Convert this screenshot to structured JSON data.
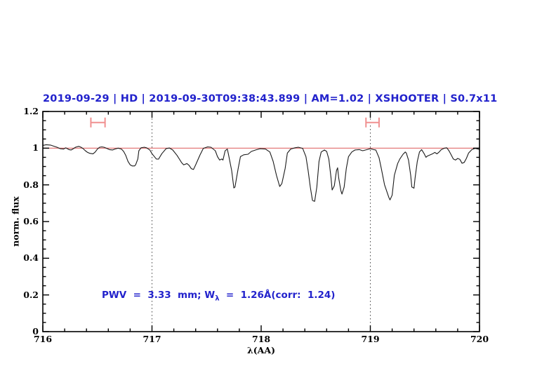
{
  "chart_data": {
    "type": "line",
    "title": "2019-09-29 | HD | 2019-09-30T09:38:43.899 | AM=1.02 | XSHOOTER | S0.7x11",
    "xlabel": "λ(AA)",
    "ylabel": "norm. flux",
    "xlim": [
      716,
      720
    ],
    "ylim": [
      0,
      1.2
    ],
    "x_major_ticks": [
      716,
      717,
      718,
      719,
      720
    ],
    "x_tick_labels": [
      "716",
      "717",
      "718",
      "719",
      "720"
    ],
    "x_minor_step": 0.2,
    "y_major_ticks": [
      0,
      0.2,
      0.4,
      0.6,
      0.8,
      1,
      1.2
    ],
    "y_tick_labels": [
      "0",
      "0.2",
      "0.4",
      "0.6",
      "0.8",
      "1",
      "1.2"
    ],
    "y_minor_step": 0.05,
    "grid": false,
    "legend": false,
    "dotted_vlines": [
      717,
      719
    ],
    "continuum_line_y": 1.0,
    "error_markers": [
      {
        "x1": 716.44,
        "x2": 716.57,
        "y": 1.14
      },
      {
        "x1": 718.96,
        "x2": 719.08,
        "y": 1.14
      }
    ],
    "annotation": {
      "prefix": "PWV  =  3.33  mm; W",
      "sub": "λ",
      "suffix": "  =  1.26Å(corr:  1.24)"
    },
    "colors": {
      "title": "#2222cc",
      "annotation": "#2222cc",
      "spectrum": "#1b1b1b",
      "continuum": "#e06a6a",
      "marker": "#f09090",
      "dotted": "#444444",
      "axis": "#000000"
    },
    "series": [
      {
        "name": "normalized-telluric-spectrum",
        "points": [
          [
            716.0,
            1.015
          ],
          [
            716.03,
            1.019
          ],
          [
            716.07,
            1.017
          ],
          [
            716.1,
            1.011
          ],
          [
            716.13,
            1.005
          ],
          [
            716.16,
            0.997
          ],
          [
            716.19,
            0.995
          ],
          [
            716.21,
            1.002
          ],
          [
            716.24,
            0.992
          ],
          [
            716.26,
            0.99
          ],
          [
            716.28,
            0.997
          ],
          [
            716.3,
            1.005
          ],
          [
            716.33,
            1.01
          ],
          [
            716.35,
            1.005
          ],
          [
            716.37,
            0.997
          ],
          [
            716.39,
            0.986
          ],
          [
            716.41,
            0.977
          ],
          [
            716.43,
            0.972
          ],
          [
            716.46,
            0.969
          ],
          [
            716.48,
            0.979
          ],
          [
            716.5,
            0.995
          ],
          [
            716.52,
            1.005
          ],
          [
            716.54,
            1.007
          ],
          [
            716.56,
            1.005
          ],
          [
            716.58,
            1.0
          ],
          [
            716.61,
            0.992
          ],
          [
            716.64,
            0.99
          ],
          [
            716.66,
            0.995
          ],
          [
            716.69,
            1.0
          ],
          [
            716.72,
            0.995
          ],
          [
            716.74,
            0.982
          ],
          [
            716.76,
            0.96
          ],
          [
            716.78,
            0.928
          ],
          [
            716.8,
            0.909
          ],
          [
            716.82,
            0.903
          ],
          [
            716.84,
            0.903
          ],
          [
            716.85,
            0.909
          ],
          [
            716.87,
            0.941
          ],
          [
            716.88,
            0.986
          ],
          [
            716.9,
            1.002
          ],
          [
            716.93,
            1.005
          ],
          [
            716.95,
            1.002
          ],
          [
            716.98,
            0.99
          ],
          [
            717.0,
            0.97
          ],
          [
            717.04,
            0.941
          ],
          [
            717.06,
            0.94
          ],
          [
            717.09,
            0.97
          ],
          [
            717.13,
            0.998
          ],
          [
            717.16,
            1.001
          ],
          [
            717.19,
            0.99
          ],
          [
            717.23,
            0.96
          ],
          [
            717.27,
            0.922
          ],
          [
            717.29,
            0.909
          ],
          [
            717.32,
            0.916
          ],
          [
            717.34,
            0.906
          ],
          [
            717.36,
            0.888
          ],
          [
            717.38,
            0.884
          ],
          [
            717.4,
            0.909
          ],
          [
            717.44,
            0.963
          ],
          [
            717.47,
            0.999
          ],
          [
            717.51,
            1.007
          ],
          [
            717.54,
            1.005
          ],
          [
            717.58,
            0.986
          ],
          [
            717.6,
            0.954
          ],
          [
            717.62,
            0.935
          ],
          [
            717.64,
            0.941
          ],
          [
            717.65,
            0.935
          ],
          [
            717.67,
            0.986
          ],
          [
            717.69,
            0.995
          ],
          [
            717.7,
            0.967
          ],
          [
            717.73,
            0.878
          ],
          [
            717.75,
            0.783
          ],
          [
            717.76,
            0.788
          ],
          [
            717.79,
            0.89
          ],
          [
            717.81,
            0.954
          ],
          [
            717.84,
            0.964
          ],
          [
            717.88,
            0.967
          ],
          [
            717.91,
            0.982
          ],
          [
            717.95,
            0.99
          ],
          [
            717.99,
            0.997
          ],
          [
            718.04,
            0.995
          ],
          [
            718.08,
            0.979
          ],
          [
            718.11,
            0.928
          ],
          [
            718.14,
            0.852
          ],
          [
            718.17,
            0.791
          ],
          [
            718.19,
            0.807
          ],
          [
            718.22,
            0.89
          ],
          [
            718.24,
            0.973
          ],
          [
            718.27,
            0.995
          ],
          [
            718.31,
            1.002
          ],
          [
            718.34,
            1.005
          ],
          [
            718.38,
            0.999
          ],
          [
            718.41,
            0.954
          ],
          [
            718.43,
            0.878
          ],
          [
            718.45,
            0.788
          ],
          [
            718.47,
            0.715
          ],
          [
            718.49,
            0.71
          ],
          [
            718.51,
            0.788
          ],
          [
            718.53,
            0.928
          ],
          [
            718.55,
            0.979
          ],
          [
            718.58,
            0.99
          ],
          [
            718.6,
            0.982
          ],
          [
            718.62,
            0.941
          ],
          [
            718.64,
            0.839
          ],
          [
            718.65,
            0.772
          ],
          [
            718.67,
            0.795
          ],
          [
            718.69,
            0.878
          ],
          [
            718.7,
            0.893
          ],
          [
            718.71,
            0.839
          ],
          [
            718.73,
            0.769
          ],
          [
            718.74,
            0.75
          ],
          [
            718.76,
            0.788
          ],
          [
            718.78,
            0.89
          ],
          [
            718.8,
            0.954
          ],
          [
            718.83,
            0.979
          ],
          [
            718.86,
            0.99
          ],
          [
            718.9,
            0.992
          ],
          [
            718.93,
            0.986
          ],
          [
            718.97,
            0.992
          ],
          [
            719.0,
            0.997
          ],
          [
            719.03,
            0.992
          ],
          [
            719.05,
            0.99
          ],
          [
            719.08,
            0.948
          ],
          [
            719.1,
            0.89
          ],
          [
            719.13,
            0.801
          ],
          [
            719.17,
            0.731
          ],
          [
            719.18,
            0.718
          ],
          [
            719.2,
            0.744
          ],
          [
            719.22,
            0.852
          ],
          [
            719.25,
            0.916
          ],
          [
            719.27,
            0.941
          ],
          [
            719.3,
            0.967
          ],
          [
            719.32,
            0.979
          ],
          [
            719.33,
            0.973
          ],
          [
            719.35,
            0.935
          ],
          [
            719.37,
            0.852
          ],
          [
            719.38,
            0.788
          ],
          [
            719.4,
            0.782
          ],
          [
            719.41,
            0.839
          ],
          [
            719.43,
            0.928
          ],
          [
            719.45,
            0.979
          ],
          [
            719.47,
            0.992
          ],
          [
            719.49,
            0.973
          ],
          [
            719.51,
            0.95
          ],
          [
            719.52,
            0.956
          ],
          [
            719.55,
            0.964
          ],
          [
            719.57,
            0.969
          ],
          [
            719.59,
            0.977
          ],
          [
            719.61,
            0.969
          ],
          [
            719.63,
            0.979
          ],
          [
            719.65,
            0.992
          ],
          [
            719.68,
            1.0
          ],
          [
            719.7,
            1.002
          ],
          [
            719.72,
            0.986
          ],
          [
            719.74,
            0.964
          ],
          [
            719.76,
            0.941
          ],
          [
            719.78,
            0.935
          ],
          [
            719.8,
            0.944
          ],
          [
            719.82,
            0.939
          ],
          [
            719.84,
            0.918
          ],
          [
            719.86,
            0.922
          ],
          [
            719.88,
            0.944
          ],
          [
            719.9,
            0.973
          ],
          [
            719.93,
            0.992
          ],
          [
            719.96,
            0.999
          ],
          [
            719.98,
            0.996
          ],
          [
            720.0,
            0.992
          ]
        ]
      }
    ]
  }
}
